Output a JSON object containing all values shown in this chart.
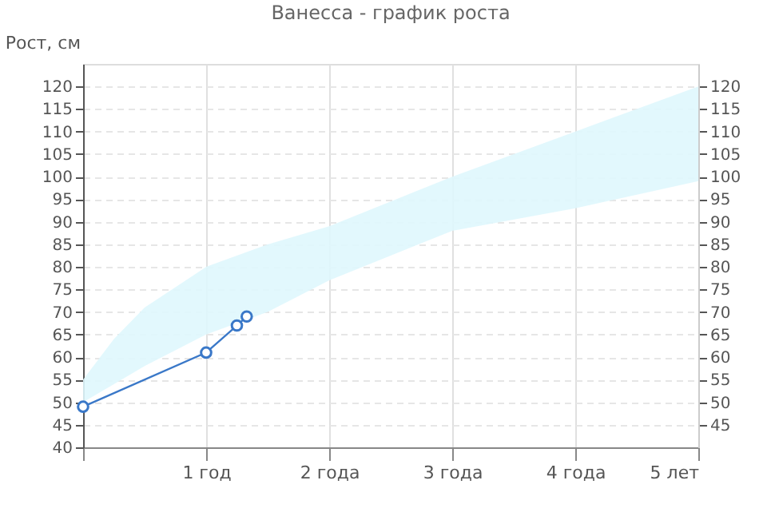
{
  "chart_data": {
    "type": "line",
    "title": "Ванесса - график роста",
    "ylabel": "Рост, см",
    "xlim": [
      0,
      5
    ],
    "xticks": [
      {
        "value": 0,
        "label": null
      },
      {
        "value": 1,
        "label": "1 год"
      },
      {
        "value": 2,
        "label": "2 года"
      },
      {
        "value": 3,
        "label": "3 года"
      },
      {
        "value": 4,
        "label": "4 года"
      },
      {
        "value": 5,
        "label": "5 лет"
      }
    ],
    "ylim": [
      40,
      125
    ],
    "yticks": [
      40,
      45,
      50,
      55,
      60,
      65,
      70,
      75,
      80,
      85,
      90,
      95,
      100,
      105,
      110,
      115,
      120
    ],
    "y2lim": [
      40,
      125
    ],
    "y2ticks": [
      45,
      50,
      55,
      60,
      65,
      70,
      75,
      80,
      85,
      90,
      95,
      100,
      105,
      110,
      115,
      120
    ],
    "grid": true,
    "marker": "circle",
    "line_style": "solid",
    "series": [
      {
        "color": "#dff7fd",
        "x": [
          0,
          0.25,
          0.5,
          1,
          1.5,
          2,
          3,
          4,
          5
        ],
        "values": [
          null,
          null,
          null,
          null,
          null,
          null,
          null,
          null,
          null
        ],
        "lower": [
          50,
          54,
          58,
          65,
          70,
          77,
          88,
          93,
          99
        ],
        "upper": [
          55,
          64,
          71,
          80,
          85,
          89,
          100,
          110,
          120
        ]
      },
      {
        "color": "#3a78c8",
        "x": [
          0,
          1,
          1.25,
          1.33
        ],
        "values": [
          49,
          61,
          67,
          69
        ]
      }
    ]
  }
}
